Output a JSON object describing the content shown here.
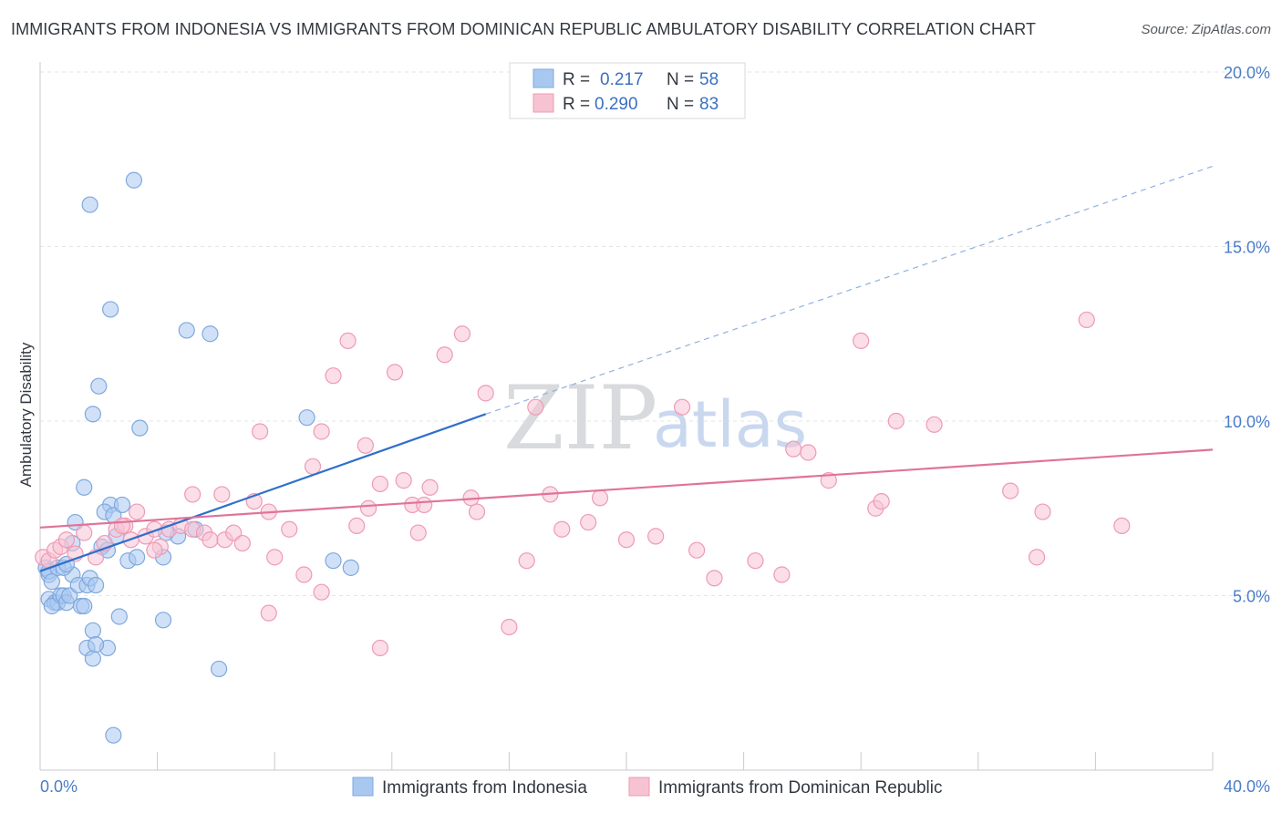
{
  "header": {
    "title": "IMMIGRANTS FROM INDONESIA VS IMMIGRANTS FROM DOMINICAN REPUBLIC AMBULATORY DISABILITY CORRELATION CHART",
    "source": "Source: ZipAtlas.com"
  },
  "watermark": {
    "zip": "ZIP",
    "atlas": "atlas"
  },
  "legend": {
    "r_label": "R =",
    "n_label": "N =",
    "rows": [
      {
        "r": "0.217",
        "n": "58",
        "color": "#a9c8f0",
        "stroke": "#7fa8de"
      },
      {
        "r": "0.290",
        "n": "83",
        "color": "#f7c3d3",
        "stroke": "#ee9ab5"
      }
    ]
  },
  "chart_data": {
    "type": "scatter",
    "title": "IMMIGRANTS FROM INDONESIA VS IMMIGRANTS FROM DOMINICAN REPUBLIC AMBULATORY DISABILITY CORRELATION CHART",
    "xlabel": "",
    "ylabel": "Ambulatory Disability",
    "xlim": [
      0,
      40
    ],
    "ylim": [
      0,
      20
    ],
    "x_tick_labels": [
      "0.0%",
      "40.0%"
    ],
    "y_ticks": [
      5,
      10,
      15,
      20
    ],
    "y_tick_labels": [
      "5.0%",
      "10.0%",
      "15.0%",
      "20.0%"
    ],
    "grid": true,
    "legend_position": "top-center",
    "series": [
      {
        "name": "Immigrants from Indonesia",
        "color": "#7fa8de",
        "fill": "#a9c8f0",
        "points": [
          [
            0.2,
            5.8
          ],
          [
            0.3,
            5.6
          ],
          [
            0.3,
            5.7
          ],
          [
            0.4,
            5.4
          ],
          [
            0.3,
            4.9
          ],
          [
            0.5,
            4.8
          ],
          [
            0.6,
            4.8
          ],
          [
            0.4,
            4.7
          ],
          [
            0.7,
            5.0
          ],
          [
            0.8,
            5.0
          ],
          [
            0.9,
            4.8
          ],
          [
            1.0,
            5.0
          ],
          [
            1.1,
            5.6
          ],
          [
            0.6,
            5.8
          ],
          [
            0.8,
            5.8
          ],
          [
            0.9,
            5.9
          ],
          [
            1.1,
            6.5
          ],
          [
            1.2,
            7.1
          ],
          [
            1.3,
            5.3
          ],
          [
            1.4,
            4.7
          ],
          [
            1.5,
            4.7
          ],
          [
            1.6,
            5.3
          ],
          [
            1.5,
            8.1
          ],
          [
            1.7,
            5.5
          ],
          [
            1.9,
            5.3
          ],
          [
            1.8,
            4.0
          ],
          [
            2.1,
            6.4
          ],
          [
            2.3,
            6.3
          ],
          [
            2.4,
            7.6
          ],
          [
            2.2,
            7.4
          ],
          [
            2.5,
            7.3
          ],
          [
            1.8,
            10.2
          ],
          [
            2.0,
            11.0
          ],
          [
            1.7,
            16.2
          ],
          [
            2.4,
            13.2
          ],
          [
            3.2,
            16.9
          ],
          [
            2.6,
            6.7
          ],
          [
            2.8,
            7.6
          ],
          [
            3.4,
            9.8
          ],
          [
            3.0,
            6.0
          ],
          [
            3.3,
            6.1
          ],
          [
            4.2,
            6.1
          ],
          [
            4.7,
            6.7
          ],
          [
            4.3,
            6.8
          ],
          [
            5.3,
            6.9
          ],
          [
            5.0,
            12.6
          ],
          [
            5.8,
            12.5
          ],
          [
            4.2,
            4.3
          ],
          [
            1.6,
            3.5
          ],
          [
            1.8,
            3.2
          ],
          [
            2.3,
            3.5
          ],
          [
            1.9,
            3.6
          ],
          [
            2.7,
            4.4
          ],
          [
            6.1,
            2.9
          ],
          [
            2.5,
            1.0
          ],
          [
            9.1,
            10.1
          ],
          [
            10.0,
            6.0
          ],
          [
            10.6,
            5.8
          ]
        ],
        "trend": {
          "x": [
            0,
            15.2
          ],
          "y": [
            5.7,
            10.2
          ],
          "dashed_extension": {
            "x": [
              15.2,
              40
            ],
            "y": [
              10.2,
              17.3
            ]
          }
        }
      },
      {
        "name": "Immigrants from Dominican Republic",
        "color": "#ee9ab5",
        "fill": "#f7c3d3",
        "points": [
          [
            0.1,
            6.1
          ],
          [
            0.3,
            6.0
          ],
          [
            0.5,
            6.3
          ],
          [
            0.7,
            6.4
          ],
          [
            0.9,
            6.6
          ],
          [
            1.2,
            6.2
          ],
          [
            1.5,
            6.8
          ],
          [
            1.9,
            6.1
          ],
          [
            2.2,
            6.5
          ],
          [
            2.6,
            6.9
          ],
          [
            2.9,
            7.0
          ],
          [
            3.1,
            6.6
          ],
          [
            3.3,
            7.4
          ],
          [
            3.6,
            6.7
          ],
          [
            3.9,
            6.9
          ],
          [
            4.1,
            6.4
          ],
          [
            4.4,
            6.9
          ],
          [
            4.8,
            7.0
          ],
          [
            5.2,
            6.9
          ],
          [
            5.6,
            6.8
          ],
          [
            5.8,
            6.6
          ],
          [
            6.3,
            6.6
          ],
          [
            6.6,
            6.8
          ],
          [
            6.9,
            6.5
          ],
          [
            5.2,
            7.9
          ],
          [
            6.2,
            7.9
          ],
          [
            7.3,
            7.7
          ],
          [
            7.8,
            7.4
          ],
          [
            8.5,
            6.9
          ],
          [
            8.0,
            6.1
          ],
          [
            9.0,
            5.6
          ],
          [
            9.6,
            5.1
          ],
          [
            7.5,
            9.7
          ],
          [
            9.6,
            9.7
          ],
          [
            9.3,
            8.7
          ],
          [
            10.0,
            11.3
          ],
          [
            10.5,
            12.3
          ],
          [
            10.8,
            7.0
          ],
          [
            11.1,
            9.3
          ],
          [
            11.2,
            7.5
          ],
          [
            11.6,
            8.2
          ],
          [
            12.1,
            11.4
          ],
          [
            12.4,
            8.3
          ],
          [
            12.7,
            7.6
          ],
          [
            12.9,
            6.8
          ],
          [
            13.1,
            7.6
          ],
          [
            13.3,
            8.1
          ],
          [
            13.8,
            11.9
          ],
          [
            14.4,
            12.5
          ],
          [
            14.7,
            7.8
          ],
          [
            14.9,
            7.4
          ],
          [
            15.2,
            10.8
          ],
          [
            16.0,
            4.1
          ],
          [
            16.6,
            6.0
          ],
          [
            16.9,
            10.4
          ],
          [
            17.4,
            7.9
          ],
          [
            17.8,
            6.9
          ],
          [
            18.7,
            7.1
          ],
          [
            19.1,
            7.8
          ],
          [
            20.0,
            6.6
          ],
          [
            21.0,
            6.7
          ],
          [
            21.9,
            10.4
          ],
          [
            22.4,
            6.3
          ],
          [
            23.0,
            5.5
          ],
          [
            24.4,
            6.0
          ],
          [
            25.3,
            5.6
          ],
          [
            25.7,
            9.2
          ],
          [
            26.2,
            9.1
          ],
          [
            26.9,
            8.3
          ],
          [
            28.0,
            12.3
          ],
          [
            28.5,
            7.5
          ],
          [
            28.7,
            7.7
          ],
          [
            29.2,
            10.0
          ],
          [
            30.5,
            9.9
          ],
          [
            33.1,
            8.0
          ],
          [
            34.0,
            6.1
          ],
          [
            34.2,
            7.4
          ],
          [
            35.7,
            12.9
          ],
          [
            36.9,
            7.0
          ],
          [
            7.8,
            4.5
          ],
          [
            11.6,
            3.5
          ],
          [
            2.8,
            7.0
          ],
          [
            3.9,
            6.3
          ]
        ],
        "trend": {
          "x": [
            0,
            40
          ],
          "y": [
            6.95,
            9.18
          ]
        }
      }
    ]
  }
}
